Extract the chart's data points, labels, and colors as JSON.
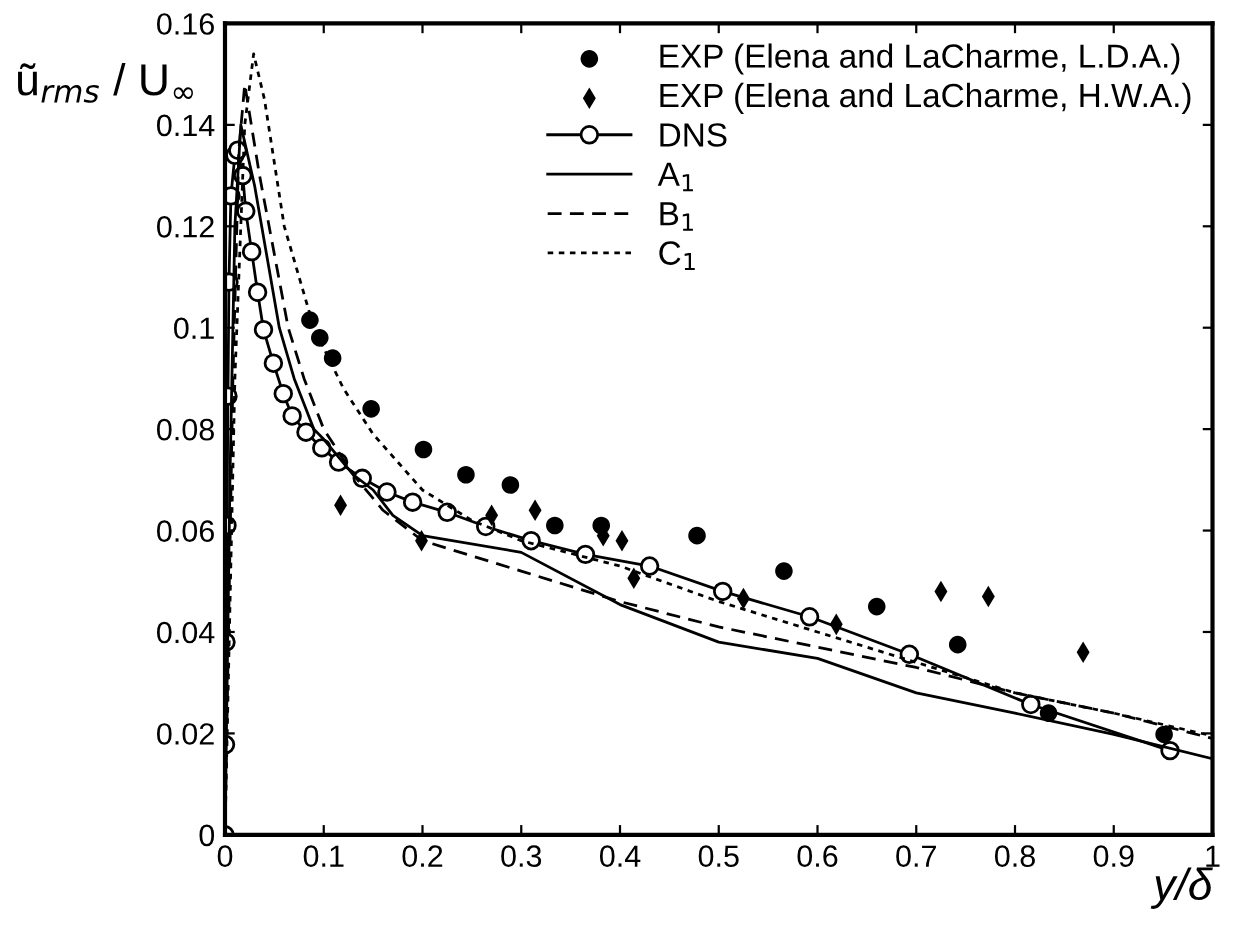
{
  "chart_data": {
    "type": "line",
    "xlabel": "y/δ",
    "ylabel": "ũ$_{rms}$ / U$_{∞}$",
    "xlim": [
      0,
      1
    ],
    "ylim": [
      0,
      0.16
    ],
    "xticks": [
      0,
      0.1,
      0.2,
      0.3,
      0.4,
      0.5,
      0.6,
      0.7,
      0.8,
      0.9,
      1
    ],
    "yticks": [
      0,
      0.02,
      0.04,
      0.06,
      0.08,
      0.1,
      0.12,
      0.14,
      0.16
    ],
    "grid": false,
    "legend": "top right",
    "series": [
      {
        "name": "EXP (Elena and LaCharme, L.D.A.)",
        "type": "scatter",
        "marker": "circle",
        "color": "#000000",
        "x": [
          0.086,
          0.096,
          0.109,
          0.148,
          0.201,
          0.244,
          0.289,
          0.334,
          0.381,
          0.478,
          0.566,
          0.66,
          0.742,
          0.834,
          0.951
        ],
        "values": [
          0.1015,
          0.098,
          0.094,
          0.084,
          0.076,
          0.071,
          0.069,
          0.061,
          0.061,
          0.059,
          0.052,
          0.045,
          0.0375,
          0.024,
          0.0198
        ]
      },
      {
        "name": "EXP (Elena and LaCharme, H.W.A.)",
        "type": "scatter",
        "marker": "diamond",
        "color": "#000000",
        "x": [
          0.117,
          0.199,
          0.27,
          0.314,
          0.383,
          0.402,
          0.414,
          0.525,
          0.619,
          0.725,
          0.773,
          0.869
        ],
        "values": [
          0.065,
          0.058,
          0.063,
          0.064,
          0.059,
          0.058,
          0.0506,
          0.0466,
          0.0415,
          0.048,
          0.047,
          0.036
        ]
      },
      {
        "name": "DNS",
        "marker": "circle",
        "line_style": "solid",
        "color": "#000000",
        "x": [
          0,
          0.0005,
          0.001,
          0.002,
          0.003,
          0.004,
          0.006,
          0.01,
          0.013,
          0.018,
          0.021,
          0.027,
          0.033,
          0.039,
          0.049,
          0.059,
          0.068,
          0.082,
          0.098,
          0.115,
          0.139,
          0.164,
          0.19,
          0.225,
          0.264,
          0.31,
          0.365,
          0.43,
          0.504,
          0.592,
          0.693,
          0.816,
          0.957
        ],
        "values": [
          0,
          0.0178,
          0.038,
          0.061,
          0.0865,
          0.109,
          0.126,
          0.134,
          0.135,
          0.13,
          0.123,
          0.115,
          0.107,
          0.0996,
          0.093,
          0.087,
          0.0826,
          0.0794,
          0.0763,
          0.0735,
          0.0703,
          0.0676,
          0.0656,
          0.0636,
          0.0608,
          0.058,
          0.0553,
          0.053,
          0.048,
          0.043,
          0.0356,
          0.0257,
          0.0166
        ]
      },
      {
        "name": "A$_{1}$",
        "marker": "none",
        "line_style": "solid",
        "color": "#000000",
        "x": [
          0,
          0.005,
          0.01,
          0.016,
          0.03,
          0.055,
          0.07,
          0.09,
          0.1,
          0.13,
          0.15,
          0.17,
          0.2,
          0.3,
          0.4,
          0.5,
          0.6,
          0.7,
          0.8,
          0.9,
          1
        ],
        "values": [
          0,
          0.07,
          0.12,
          0.14,
          0.128,
          0.1,
          0.09,
          0.08,
          0.078,
          0.071,
          0.068,
          0.063,
          0.059,
          0.0557,
          0.0454,
          0.038,
          0.0348,
          0.028,
          0.024,
          0.0198,
          0.015
        ]
      },
      {
        "name": "B$_{1}$",
        "marker": "none",
        "line_style": "dashed",
        "color": "#000000",
        "x": [
          0,
          0.008,
          0.014,
          0.02,
          0.035,
          0.064,
          0.08,
          0.1,
          0.13,
          0.16,
          0.2,
          0.3,
          0.4,
          0.5,
          0.6,
          0.7,
          0.8,
          0.9,
          1
        ],
        "values": [
          0,
          0.09,
          0.135,
          0.148,
          0.13,
          0.1,
          0.09,
          0.08,
          0.071,
          0.064,
          0.058,
          0.052,
          0.046,
          0.041,
          0.037,
          0.033,
          0.028,
          0.024,
          0.019
        ]
      },
      {
        "name": "C$_{1}$",
        "marker": "none",
        "line_style": "dotted",
        "color": "#000000",
        "x": [
          0,
          0.01,
          0.02,
          0.029,
          0.04,
          0.06,
          0.09,
          0.12,
          0.15,
          0.2,
          0.25,
          0.3,
          0.4,
          0.5,
          0.6,
          0.7,
          0.8,
          0.9,
          1
        ],
        "values": [
          0,
          0.09,
          0.14,
          0.154,
          0.145,
          0.12,
          0.1,
          0.088,
          0.079,
          0.068,
          0.062,
          0.058,
          0.053,
          0.046,
          0.04,
          0.034,
          0.028,
          0.024,
          0.0195
        ]
      }
    ]
  }
}
